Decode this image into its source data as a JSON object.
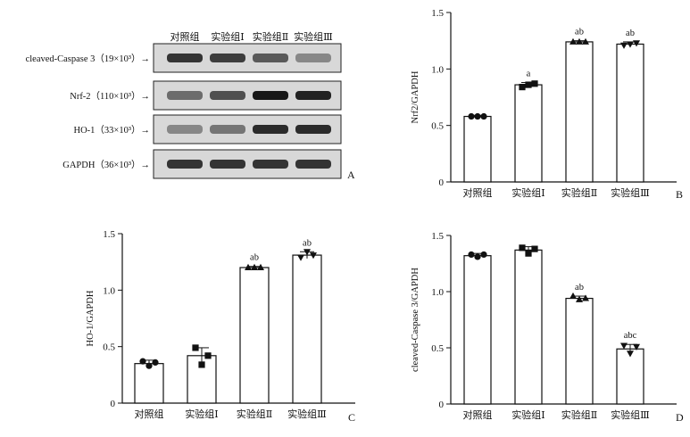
{
  "figure": {
    "blot": {
      "panel_letter": "A",
      "lanes": [
        "对照组",
        "实验组Ⅰ",
        "实验组Ⅱ",
        "实验组Ⅲ"
      ],
      "rows": [
        {
          "label": "cleaved-Caspase 3（19×10³）→",
          "intensity": [
            0.8,
            0.75,
            0.6,
            0.35
          ]
        },
        {
          "label": "Nrf-2（110×10³）→",
          "intensity": [
            0.5,
            0.65,
            0.95,
            0.9
          ]
        },
        {
          "label": "HO-1（33×10³）→",
          "intensity": [
            0.35,
            0.45,
            0.85,
            0.85
          ]
        },
        {
          "label": "GAPDH（36×10³）→",
          "intensity": [
            0.8,
            0.8,
            0.8,
            0.8
          ]
        }
      ]
    }
  },
  "chart_data": [
    {
      "panel": "B",
      "type": "bar",
      "ylabel": "Nrf2/GAPDH",
      "ylim": [
        0,
        1.5
      ],
      "yticks": [
        "0",
        "0.5",
        "1.0",
        "1.5"
      ],
      "categories": [
        "对照组",
        "实验组Ⅰ",
        "实验组Ⅱ",
        "实验组Ⅲ"
      ],
      "values": [
        0.58,
        0.86,
        1.24,
        1.22
      ],
      "errors": [
        0.01,
        0.02,
        0.01,
        0.02
      ],
      "points": [
        [
          0.58,
          0.58,
          0.58
        ],
        [
          0.84,
          0.86,
          0.87
        ],
        [
          1.24,
          1.24,
          1.24
        ],
        [
          1.21,
          1.22,
          1.23
        ]
      ],
      "markers": [
        "circle",
        "square",
        "triangle",
        "triangle-down"
      ],
      "labels": [
        "",
        "a",
        "ab",
        "ab"
      ]
    },
    {
      "panel": "C",
      "type": "bar",
      "ylabel": "HO-1/GAPDH",
      "ylim": [
        0,
        1.5
      ],
      "yticks": [
        "0",
        "0.5",
        "1.0",
        "1.5"
      ],
      "categories": [
        "对照组",
        "实验组Ⅰ",
        "实验组Ⅱ",
        "实验组Ⅲ"
      ],
      "values": [
        0.35,
        0.42,
        1.2,
        1.31
      ],
      "errors": [
        0.03,
        0.07,
        0.01,
        0.03
      ],
      "points": [
        [
          0.37,
          0.33,
          0.36
        ],
        [
          0.49,
          0.34,
          0.42
        ],
        [
          1.2,
          1.2,
          1.2
        ],
        [
          1.29,
          1.34,
          1.31
        ]
      ],
      "markers": [
        "circle",
        "square",
        "triangle",
        "triangle-down"
      ],
      "labels": [
        "",
        "",
        "ab",
        "ab"
      ]
    },
    {
      "panel": "D",
      "type": "bar",
      "ylabel": "cleaved-Caspase 3/GAPDH",
      "ylim": [
        0,
        1.5
      ],
      "yticks": [
        "0",
        "0.5",
        "1.0",
        "1.5"
      ],
      "categories": [
        "对照组",
        "实验组Ⅰ",
        "实验组Ⅱ",
        "实验组Ⅲ"
      ],
      "values": [
        1.32,
        1.37,
        0.94,
        0.49
      ],
      "errors": [
        0.02,
        0.03,
        0.02,
        0.04
      ],
      "points": [
        [
          1.33,
          1.31,
          1.33
        ],
        [
          1.39,
          1.34,
          1.38
        ],
        [
          0.96,
          0.93,
          0.94
        ],
        [
          0.52,
          0.45,
          0.51
        ]
      ],
      "markers": [
        "circle",
        "square",
        "triangle",
        "triangle-down"
      ],
      "labels": [
        "",
        "",
        "ab",
        "abc"
      ]
    }
  ]
}
